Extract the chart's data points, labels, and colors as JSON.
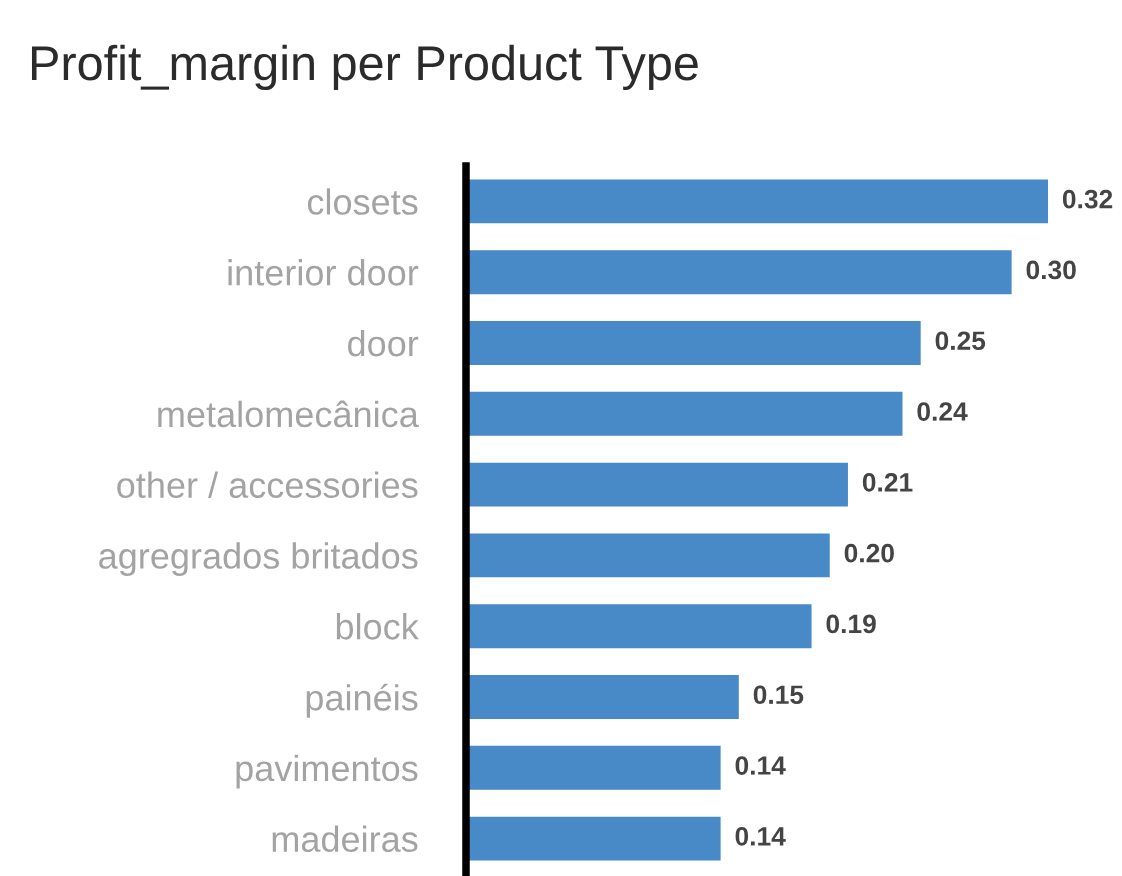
{
  "chart_data": {
    "type": "bar",
    "orientation": "horizontal",
    "title": "Profit_margin per Product Type",
    "categories": [
      "closets",
      "interior door",
      "door",
      "metalomecânica",
      "other / accessories",
      "agregrados britados",
      "block",
      "painéis",
      "pavimentos",
      "madeiras"
    ],
    "values": [
      0.32,
      0.3,
      0.25,
      0.24,
      0.21,
      0.2,
      0.19,
      0.15,
      0.14,
      0.14
    ],
    "value_labels": [
      "0.32",
      "0.30",
      "0.25",
      "0.24",
      "0.21",
      "0.20",
      "0.19",
      "0.15",
      "0.14",
      "0.14"
    ],
    "color": "#4889c8",
    "grid": false,
    "tick_labels": "y"
  }
}
